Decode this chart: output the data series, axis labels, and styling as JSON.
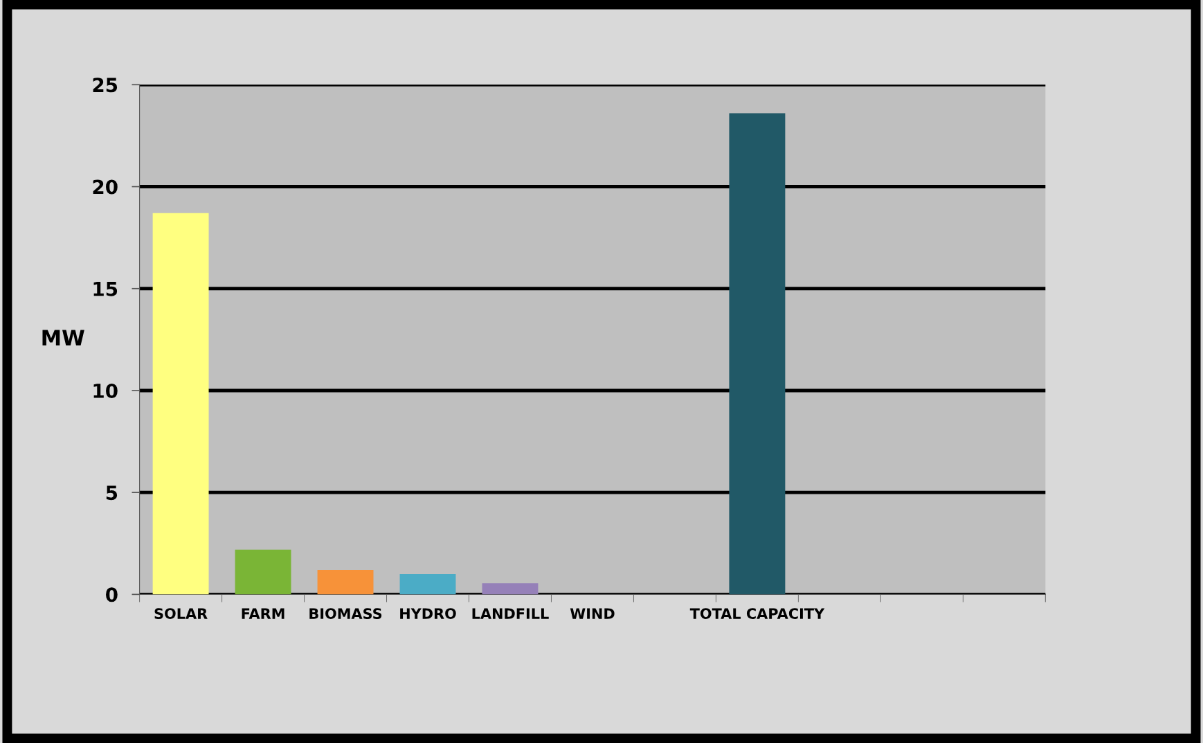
{
  "chart_data": {
    "type": "bar",
    "ylabel": "MW",
    "categories": [
      "SOLAR",
      "FARM",
      "BIOMASS",
      "HYDRO",
      "LANDFILL",
      "WIND",
      null,
      "TOTAL CAPACITY",
      null,
      null,
      null
    ],
    "values": [
      18.7,
      2.2,
      1.2,
      1.0,
      0.55,
      0,
      null,
      23.6,
      null,
      null,
      null
    ],
    "colors": [
      "#ffff80",
      "#7ab536",
      "#f79239",
      "#4bacc6",
      "#9580b8",
      "#9580b8",
      "#215967",
      "#215967",
      "#215967",
      "#215967",
      "#215967"
    ],
    "ylim": [
      0,
      25
    ],
    "yticks": [
      0,
      5,
      10,
      15,
      20,
      25
    ],
    "grid": "y"
  }
}
